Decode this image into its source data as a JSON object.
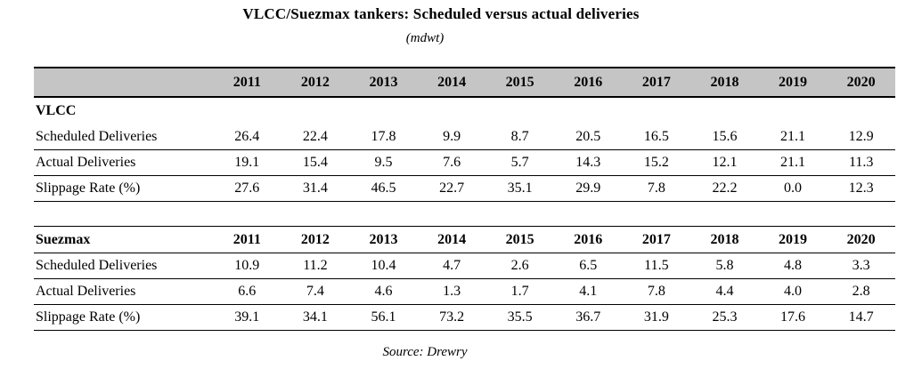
{
  "title": "VLCC/Suezmax tankers: Scheduled versus actual deliveries",
  "subtitle": "(mdwt)",
  "source": "Source: Drewry",
  "colors": {
    "header_bg": "#c5c5c5",
    "border": "#000000",
    "text": "#000000",
    "background": "#ffffff"
  },
  "chart_data": {
    "type": "table",
    "title": "VLCC/Suezmax tankers: Scheduled versus actual deliveries",
    "unit": "mdwt",
    "years": [
      "2011",
      "2012",
      "2013",
      "2014",
      "2015",
      "2016",
      "2017",
      "2018",
      "2019",
      "2020"
    ],
    "sections": [
      {
        "name": "VLCC",
        "repeat_years_in_header": false,
        "rows": [
          {
            "label": "Scheduled Deliveries",
            "values": [
              "26.4",
              "22.4",
              "17.8",
              "9.9",
              "8.7",
              "20.5",
              "16.5",
              "15.6",
              "21.1",
              "12.9"
            ]
          },
          {
            "label": "Actual Deliveries",
            "values": [
              "19.1",
              "15.4",
              "9.5",
              "7.6",
              "5.7",
              "14.3",
              "15.2",
              "12.1",
              "21.1",
              "11.3"
            ]
          },
          {
            "label": "Slippage Rate (%)",
            "values": [
              "27.6",
              "31.4",
              "46.5",
              "22.7",
              "35.1",
              "29.9",
              "7.8",
              "22.2",
              "0.0",
              "12.3"
            ]
          }
        ]
      },
      {
        "name": "Suezmax",
        "repeat_years_in_header": true,
        "rows": [
          {
            "label": "Scheduled Deliveries",
            "values": [
              "10.9",
              "11.2",
              "10.4",
              "4.7",
              "2.6",
              "6.5",
              "11.5",
              "5.8",
              "4.8",
              "3.3"
            ]
          },
          {
            "label": "Actual Deliveries",
            "values": [
              "6.6",
              "7.4",
              "4.6",
              "1.3",
              "1.7",
              "4.1",
              "7.8",
              "4.4",
              "4.0",
              "2.8"
            ]
          },
          {
            "label": "Slippage Rate (%)",
            "values": [
              "39.1",
              "34.1",
              "56.1",
              "73.2",
              "35.5",
              "36.7",
              "31.9",
              "25.3",
              "17.6",
              "14.7"
            ]
          }
        ]
      }
    ]
  }
}
